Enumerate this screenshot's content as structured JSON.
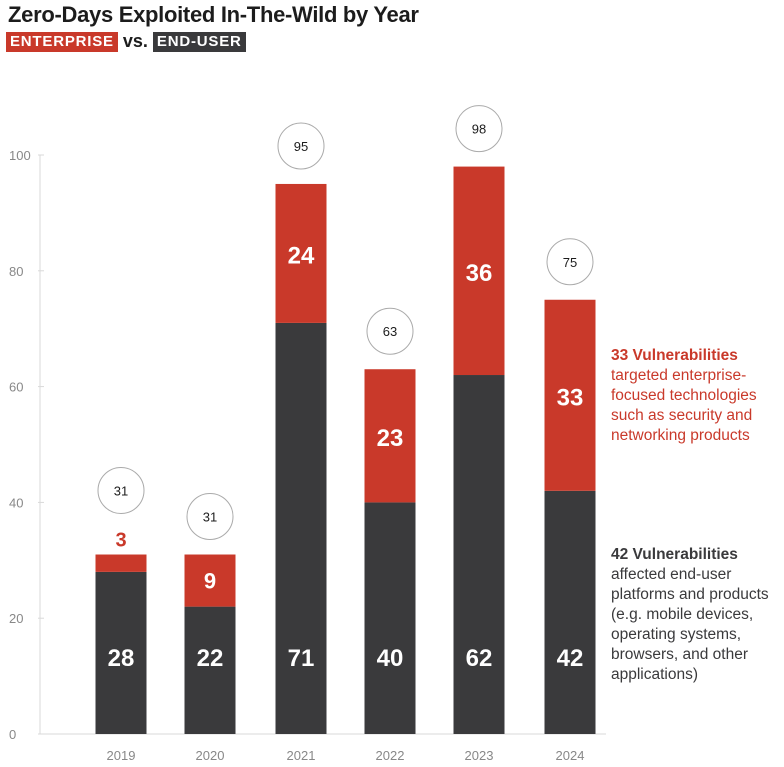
{
  "header": {
    "title": "Zero-Days Exploited In-The-Wild by Year",
    "tag_enterprise": "ENTERPRISE",
    "vs": "vs.",
    "tag_enduser": "END-USER"
  },
  "colors": {
    "enterprise": "#c9392a",
    "end_user": "#3a3a3c",
    "axis_text": "#888888",
    "grid": "#d9d9d9"
  },
  "annotations": {
    "enterprise": {
      "headline": "33 Vulnerabilities",
      "lines": [
        "targeted enterprise-",
        "focused technologies",
        "such as security and",
        "networking products"
      ]
    },
    "end_user": {
      "headline": "42 Vulnerabilities",
      "lines": [
        "affected end-user",
        "platforms and products",
        "(e.g. mobile devices,",
        "operating systems,",
        "browsers, and other",
        "applications)"
      ]
    }
  },
  "chart_data": {
    "type": "bar",
    "stacked": true,
    "categories": [
      "2019",
      "2020",
      "2021",
      "2022",
      "2023",
      "2024"
    ],
    "series": [
      {
        "name": "END-USER",
        "values": [
          28,
          22,
          71,
          40,
          62,
          42
        ]
      },
      {
        "name": "ENTERPRISE",
        "values": [
          3,
          9,
          24,
          23,
          36,
          33
        ]
      }
    ],
    "totals": [
      31,
      31,
      95,
      63,
      98,
      75
    ],
    "ylim": [
      0,
      100
    ],
    "yticks": [
      0,
      20,
      40,
      60,
      80,
      100
    ],
    "grid": false
  }
}
